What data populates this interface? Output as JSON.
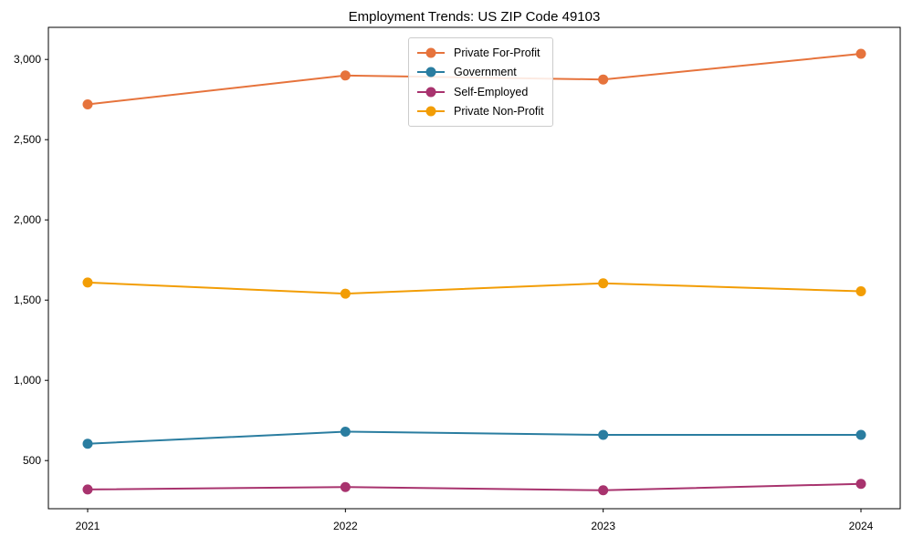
{
  "chart_data": {
    "type": "line",
    "title": "Employment Trends: US ZIP Code 49103",
    "x": [
      "2021",
      "2022",
      "2023",
      "2024"
    ],
    "series": [
      {
        "name": "Private For-Profit",
        "color": "#e6733c",
        "values": [
          2720,
          2900,
          2875,
          3035
        ]
      },
      {
        "name": "Government",
        "color": "#2a7da0",
        "values": [
          605,
          680,
          660,
          660
        ]
      },
      {
        "name": "Self-Employed",
        "color": "#a8336e",
        "values": [
          320,
          335,
          315,
          355
        ]
      },
      {
        "name": "Private Non-Profit",
        "color": "#f29d05",
        "values": [
          1610,
          1540,
          1605,
          1555
        ]
      }
    ],
    "xlabel": "",
    "ylabel": "",
    "y_ticks": [
      500,
      1000,
      1500,
      2000,
      2500,
      3000
    ],
    "ylim": [
      200,
      3200
    ],
    "grid": false,
    "legend_position": "upper center",
    "marker": "circle",
    "frame": "full-box",
    "axis_color": "#000000",
    "legend_border_color": "#cccccc"
  }
}
